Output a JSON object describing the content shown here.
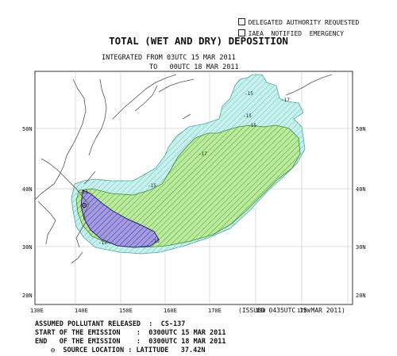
{
  "legend": {
    "items": [
      {
        "label": "DELEGATED AUTHORITY REQUESTED"
      },
      {
        "label": "IAEA  NOTIFIED  EMERGENCY"
      }
    ]
  },
  "title": "TOTAL (WET AND DRY) DEPOSITION",
  "integrated": {
    "from_label": "INTEGRATED FROM 03UTC 15 MAR 2011",
    "to_label": "TO   00UTC 18 MAR 2011"
  },
  "map": {
    "lat_labels": [
      "50N",
      "40N",
      "30N",
      "20N"
    ],
    "lon_labels": [
      "130E",
      "140E",
      "150E",
      "160E",
      "170E",
      "180",
      "170W"
    ],
    "contour_labels": [
      "-15",
      "-17",
      "-15",
      "-15",
      "-17",
      "-15",
      "-13",
      "-13",
      "-13"
    ],
    "colors": {
      "outer_zone": "#bfeeea",
      "middle_zone": "#b8e8a0",
      "inner_zone": "#9a8ed8",
      "coast": "#555555",
      "grid": "#bbbbbb"
    }
  },
  "issued": "(ISSUED 0435UTC 15 MAR 2011)",
  "info": {
    "pollutant_label": "ASSUMED POLLUTANT RELEASED  :  CS-137",
    "start_label": "START OF THE EMISSION    :  0300UTC 15 MAR 2011",
    "end_label": "END   OF THE EMISSION    :  0300UTC 18 MAR 2011",
    "source_symbol": "◎",
    "source_label": "SOURCE LOCATION : LATITUDE   37.42N"
  }
}
